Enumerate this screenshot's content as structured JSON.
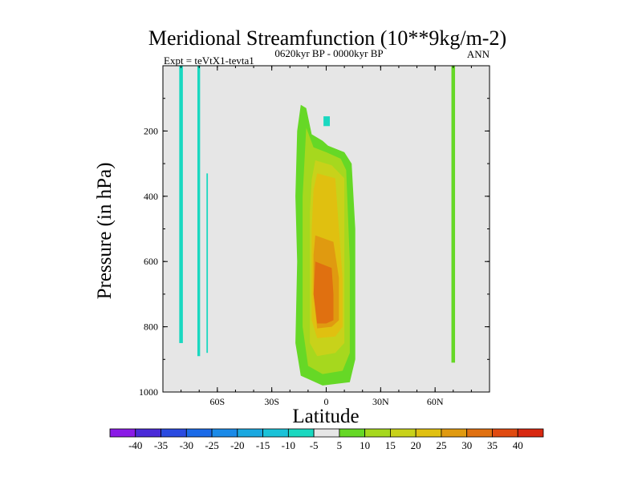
{
  "chart_data": {
    "type": "contour",
    "title": "Meridional Streamfunction (10**9kg/m-2)",
    "subtitle_left": "Expt = teVtX1-tevta1",
    "subtitle_center": "0620kyr BP - 0000kyr BP",
    "subtitle_right": "ANN",
    "xlabel": "Latitude",
    "ylabel": "Pressure (in hPa)",
    "xlim": [
      -90,
      90
    ],
    "ylim": [
      1000,
      0
    ],
    "x_ticks": [
      {
        "value": -60,
        "label": "60S"
      },
      {
        "value": -30,
        "label": "30S"
      },
      {
        "value": 0,
        "label": "0"
      },
      {
        "value": 30,
        "label": "30N"
      },
      {
        "value": 60,
        "label": "60N"
      }
    ],
    "y_ticks": [
      {
        "value": 200,
        "label": "200"
      },
      {
        "value": 400,
        "label": "400"
      },
      {
        "value": 600,
        "label": "600"
      },
      {
        "value": 800,
        "label": "800"
      },
      {
        "value": 1000,
        "label": "1000"
      }
    ],
    "background_color": "#e6e6e6",
    "colorbar": {
      "labels": [
        "-40",
        "-35",
        "-30",
        "-25",
        "-20",
        "-15",
        "-10",
        "-5",
        "5",
        "10",
        "15",
        "20",
        "25",
        "30",
        "35",
        "40"
      ],
      "colors": [
        "#8a1ae6",
        "#4a2ad8",
        "#2a4ae0",
        "#1a6ae8",
        "#1a8ae8",
        "#1aa8e0",
        "#1ac2d8",
        "#1ad8c0",
        "#e6e6e6",
        "#66d826",
        "#a6d81e",
        "#c8d21a",
        "#e0c010",
        "#e09a10",
        "#e07010",
        "#e04a10",
        "#d82810"
      ]
    },
    "regions": [
      {
        "name": "neg-band-80s",
        "level": -5,
        "lat_min": -81,
        "lat_max": -79,
        "p_min": 0,
        "p_max": 850
      },
      {
        "name": "neg-band-70s",
        "level": -5,
        "lat_min": -71,
        "lat_max": -69.5,
        "p_min": 0,
        "p_max": 890
      },
      {
        "name": "neg-band-66s",
        "level": -5,
        "lat_min": -66,
        "lat_max": -65.2,
        "p_min": 330,
        "p_max": 880
      },
      {
        "name": "pos-band-70n",
        "level": 5,
        "lat_min": 69,
        "lat_max": 71,
        "p_min": 0,
        "p_max": 910
      },
      {
        "name": "neg-patch-0",
        "level": -5,
        "lat_min": -1.5,
        "lat_max": 2,
        "p_min": 155,
        "p_max": 185
      }
    ],
    "central_cell": [
      {
        "level": 5,
        "outline": [
          [
            -14,
            120
          ],
          [
            -11,
            130
          ],
          [
            -8,
            210
          ],
          [
            -2,
            230
          ],
          [
            1,
            245
          ],
          [
            10,
            265
          ],
          [
            14,
            300
          ],
          [
            16,
            500
          ],
          [
            16,
            900
          ],
          [
            13,
            970
          ],
          [
            -2,
            980
          ],
          [
            -14,
            950
          ],
          [
            -17,
            850
          ],
          [
            -16,
            600
          ],
          [
            -17,
            400
          ],
          [
            -16,
            200
          ]
        ]
      },
      {
        "level": 10,
        "outline": [
          [
            -11,
            190
          ],
          [
            -7,
            250
          ],
          [
            0,
            265
          ],
          [
            8,
            285
          ],
          [
            11,
            320
          ],
          [
            13,
            600
          ],
          [
            13,
            880
          ],
          [
            9,
            935
          ],
          [
            -2,
            945
          ],
          [
            -10,
            920
          ],
          [
            -13,
            800
          ],
          [
            -13,
            400
          ]
        ]
      },
      {
        "level": 15,
        "outline": [
          [
            -6,
            290
          ],
          [
            3,
            305
          ],
          [
            10,
            345
          ],
          [
            10,
            600
          ],
          [
            10,
            850
          ],
          [
            5,
            880
          ],
          [
            -5,
            890
          ],
          [
            -9,
            850
          ],
          [
            -9,
            450
          ],
          [
            -8,
            350
          ]
        ]
      },
      {
        "level": 20,
        "outline": [
          [
            -5,
            330
          ],
          [
            5,
            345
          ],
          [
            7,
            500
          ],
          [
            9,
            650
          ],
          [
            9,
            800
          ],
          [
            5,
            830
          ],
          [
            -5,
            835
          ],
          [
            -8,
            780
          ],
          [
            -8,
            500
          ],
          [
            -7,
            380
          ]
        ]
      },
      {
        "level": 25,
        "outline": [
          [
            -6,
            520
          ],
          [
            4,
            540
          ],
          [
            7,
            650
          ],
          [
            7,
            780
          ],
          [
            3,
            800
          ],
          [
            -5,
            805
          ],
          [
            -7,
            700
          ],
          [
            -7,
            580
          ]
        ]
      },
      {
        "level": 30,
        "outline": [
          [
            -6,
            600
          ],
          [
            3,
            620
          ],
          [
            4,
            700
          ],
          [
            4,
            780
          ],
          [
            0,
            790
          ],
          [
            -5,
            790
          ],
          [
            -7,
            700
          ]
        ]
      }
    ]
  }
}
